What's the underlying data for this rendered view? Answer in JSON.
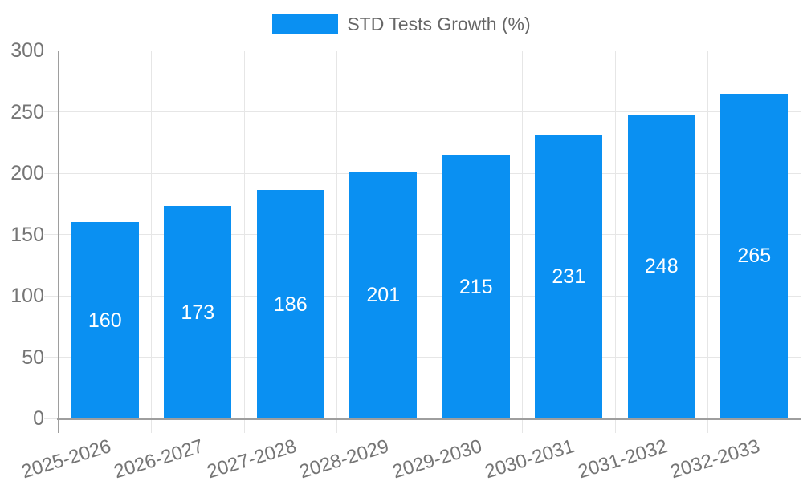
{
  "legend": {
    "label": "STD Tests Growth (%)"
  },
  "colors": {
    "bar": "#0a90f2",
    "grid": "#e6e6e6",
    "axis": "#9e9e9e",
    "tick_text": "#757575",
    "legend_text": "#666666",
    "bar_label_text": "#ffffff"
  },
  "chart_data": {
    "type": "bar",
    "title": "STD Tests Growth (%)",
    "categories": [
      "2025-2026",
      "2026-2027",
      "2027-2028",
      "2028-2029",
      "2029-2030",
      "2030-2031",
      "2031-2032",
      "2032-2033"
    ],
    "values": [
      160,
      173,
      186,
      201,
      215,
      231,
      248,
      265
    ],
    "xlabel": "",
    "ylabel": "",
    "ylim": [
      0,
      300
    ],
    "yticks": [
      0,
      50,
      100,
      150,
      200,
      250,
      300
    ],
    "grid": true,
    "legend_position": "top",
    "value_labels": "inside-center"
  }
}
